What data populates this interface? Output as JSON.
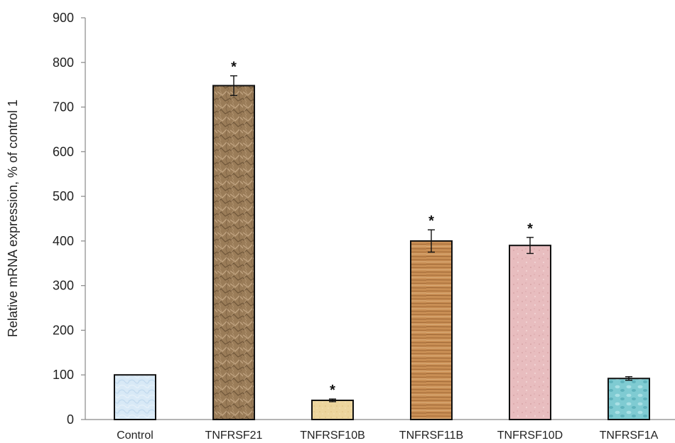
{
  "chart_data": {
    "type": "bar",
    "title": "",
    "xlabel": "",
    "ylabel": "Relative mRNA expression, % of control 1",
    "ylim": [
      0,
      900
    ],
    "yticks": [
      0,
      100,
      200,
      300,
      400,
      500,
      600,
      700,
      800,
      900
    ],
    "grid": false,
    "legend": "none",
    "categories": [
      "Control",
      "TNFRSF21",
      "TNFRSF10B",
      "TNFRSF11B",
      "TNFRSF10D",
      "TNFRSF1A"
    ],
    "values": [
      100,
      748,
      43,
      400,
      390,
      92
    ],
    "errors": [
      0,
      22,
      3,
      25,
      18,
      4
    ],
    "significance": [
      "",
      "*",
      "*",
      "*",
      "*",
      ""
    ],
    "bar_colors": [
      "#d4e6f4",
      "#9c7f5c",
      "#ecd49a",
      "#c98f52",
      "#e6b9bc",
      "#7ec9d0"
    ],
    "bar_textures": [
      "light-blue-marble",
      "crumpled-paper",
      "pale-yellow",
      "wood-grain",
      "pink-marble",
      "aqua-droplets"
    ]
  }
}
